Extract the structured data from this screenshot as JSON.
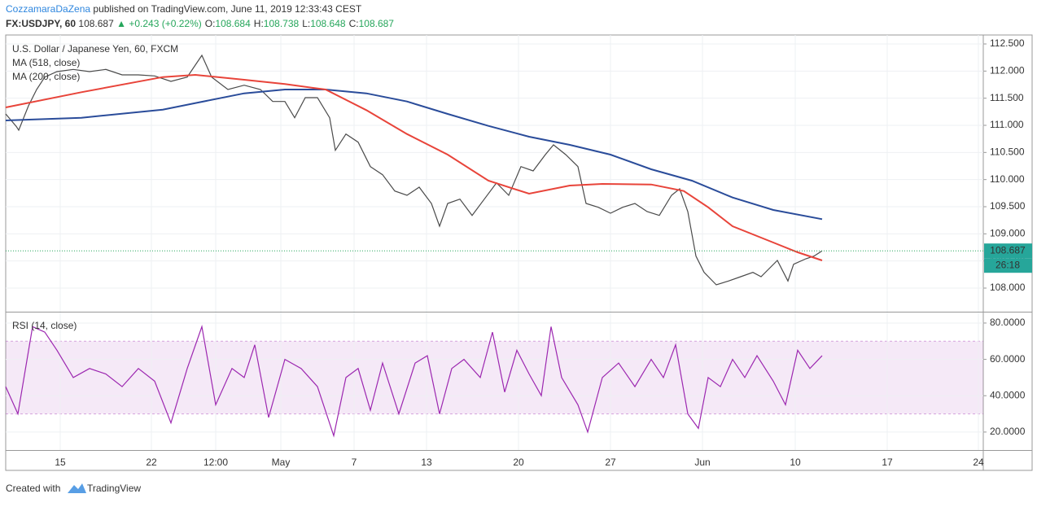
{
  "header": {
    "author": "CozzamaraDaZena",
    "published": "published on TradingView.com, June 11, 2019 12:33:43 CEST",
    "symbol": "FX:USDJPY, 60",
    "price": "108.687",
    "change": "▲ +0.243 (+0.22%)",
    "ohlc": [
      {
        "label": "O:",
        "value": "108.684"
      },
      {
        "label": "H:",
        "value": "108.738"
      },
      {
        "label": "L:",
        "value": "108.648"
      },
      {
        "label": "C:",
        "value": "108.687"
      }
    ]
  },
  "chart_data": [
    {
      "type": "line",
      "title": "U.S. Dollar / Japanese Yen, 60, FXCM",
      "xlim": [
        0,
        1201
      ],
      "xticks": [
        {
          "value": 67,
          "label": "15"
        },
        {
          "value": 179,
          "label": "22"
        },
        {
          "value": 258,
          "label": "12:00"
        },
        {
          "value": 338,
          "label": "May"
        },
        {
          "value": 428,
          "label": "7"
        },
        {
          "value": 517,
          "label": "13"
        },
        {
          "value": 630,
          "label": "20"
        },
        {
          "value": 743,
          "label": "27"
        },
        {
          "value": 856,
          "label": "Jun"
        },
        {
          "value": 970,
          "label": "10"
        },
        {
          "value": 1083,
          "label": "17"
        },
        {
          "value": 1195,
          "label": "24"
        }
      ],
      "ylim": [
        107.565,
        112.665
      ],
      "yticks": [
        {
          "value": 112.5,
          "label": "112.500"
        },
        {
          "value": 112,
          "label": "112.000"
        },
        {
          "value": 111.5,
          "label": "111.500"
        },
        {
          "value": 111,
          "label": "111.000"
        },
        {
          "value": 110.5,
          "label": "110.500"
        },
        {
          "value": 110,
          "label": "110.000"
        },
        {
          "value": 109.5,
          "label": "109.500"
        },
        {
          "value": 109,
          "label": "109.000"
        },
        {
          "value": 108.5,
          "label": "108.500"
        },
        {
          "value": 108,
          "label": "108.000"
        }
      ],
      "grid": true,
      "series": [
        {
          "color": "#4a4a4a",
          "x": [
            0,
            13,
            16,
            28,
            38,
            48,
            63,
            83,
            103,
            123,
            143,
            163,
            183,
            203,
            223,
            241,
            253,
            273,
            293,
            313,
            328,
            343,
            355,
            368,
            383,
            398,
            405,
            418,
            433,
            448,
            463,
            478,
            493,
            508,
            523,
            533,
            543,
            558,
            573,
            588,
            603,
            618,
            633,
            648,
            663,
            673,
            688,
            703,
            713,
            728,
            743,
            758,
            773,
            788,
            803,
            818,
            828,
            838,
            848,
            858,
            873,
            888,
            903,
            918,
            928,
            938,
            948,
            961,
            968,
            983,
            993,
            1003
          ],
          "values": [
            111.21,
            110.98,
            110.91,
            111.36,
            111.66,
            111.89,
            111.99,
            112.03,
            111.99,
            112.03,
            111.93,
            111.93,
            111.91,
            111.81,
            111.89,
            112.29,
            111.89,
            111.66,
            111.74,
            111.66,
            111.44,
            111.44,
            111.14,
            111.51,
            111.51,
            111.14,
            110.54,
            110.84,
            110.69,
            110.24,
            110.09,
            109.79,
            109.71,
            109.86,
            109.56,
            109.14,
            109.56,
            109.64,
            109.34,
            109.64,
            109.94,
            109.71,
            110.24,
            110.16,
            110.46,
            110.64,
            110.46,
            110.24,
            109.56,
            109.49,
            109.38,
            109.49,
            109.56,
            109.41,
            109.34,
            109.71,
            109.83,
            109.41,
            108.59,
            108.29,
            108.06,
            108.13,
            108.21,
            108.29,
            108.21,
            108.36,
            108.51,
            108.13,
            108.44,
            108.54,
            108.59,
            108.687
          ]
        },
        {
          "name": "MA (518, close)",
          "color": "#2a4c9a",
          "x": [
            0,
            93,
            193,
            293,
            343,
            393,
            443,
            493,
            543,
            593,
            643,
            693,
            743,
            793,
            843,
            893,
            943,
            1003
          ],
          "values": [
            111.09,
            111.14,
            111.29,
            111.59,
            111.66,
            111.66,
            111.59,
            111.44,
            111.21,
            110.99,
            110.79,
            110.64,
            110.46,
            110.19,
            109.98,
            109.67,
            109.44,
            109.27
          ]
        },
        {
          "name": "MA (200, close)",
          "color": "#e8443a",
          "x": [
            0,
            93,
            193,
            233,
            293,
            343,
            393,
            443,
            493,
            543,
            593,
            643,
            693,
            733,
            793,
            833,
            863,
            893,
            943,
            973,
            1003
          ],
          "values": [
            111.33,
            111.61,
            111.89,
            111.93,
            111.84,
            111.76,
            111.66,
            111.28,
            110.84,
            110.46,
            109.98,
            109.74,
            109.89,
            109.92,
            109.91,
            109.79,
            109.49,
            109.14,
            108.84,
            108.66,
            108.51
          ]
        }
      ],
      "last_price": {
        "value": 108.687,
        "label": "108.687"
      },
      "countdown": "26:18"
    },
    {
      "type": "line",
      "title": "RSI (14, close)",
      "xlim": [
        0,
        1201
      ],
      "xticks": [
        67,
        179,
        258,
        338,
        428,
        517,
        630,
        743,
        856,
        970,
        1083,
        1195
      ],
      "ylim": [
        10.1,
        85.8
      ],
      "yticks": [
        {
          "value": 80,
          "label": "80.0000"
        },
        {
          "value": 60,
          "label": "60.0000"
        },
        {
          "value": 40,
          "label": "40.0000"
        },
        {
          "value": 20,
          "label": "20.0000"
        }
      ],
      "band": [
        30,
        70
      ],
      "band_color": "#9c27b0",
      "series": [
        {
          "color": "#9c27b0",
          "x": [
            0,
            15,
            33,
            48,
            63,
            83,
            103,
            123,
            143,
            163,
            183,
            203,
            223,
            241,
            258,
            278,
            293,
            306,
            323,
            343,
            363,
            383,
            403,
            418,
            433,
            448,
            463,
            483,
            503,
            518,
            533,
            548,
            563,
            583,
            598,
            613,
            628,
            643,
            658,
            670,
            683,
            703,
            715,
            733,
            753,
            773,
            793,
            808,
            823,
            838,
            851,
            863,
            878,
            893,
            908,
            923,
            943,
            958,
            973,
            988,
            1003
          ],
          "values": [
            45,
            30,
            78,
            75,
            65,
            50,
            55,
            52,
            45,
            55,
            48,
            25,
            55,
            78,
            35,
            55,
            50,
            68,
            28,
            60,
            55,
            45,
            18,
            50,
            55,
            32,
            58,
            30,
            58,
            62,
            30,
            55,
            60,
            50,
            75,
            42,
            65,
            52,
            40,
            78,
            50,
            35,
            20,
            50,
            58,
            45,
            60,
            50,
            68,
            30,
            22,
            50,
            45,
            60,
            50,
            62,
            48,
            35,
            65,
            55,
            62
          ]
        }
      ]
    }
  ]
}
